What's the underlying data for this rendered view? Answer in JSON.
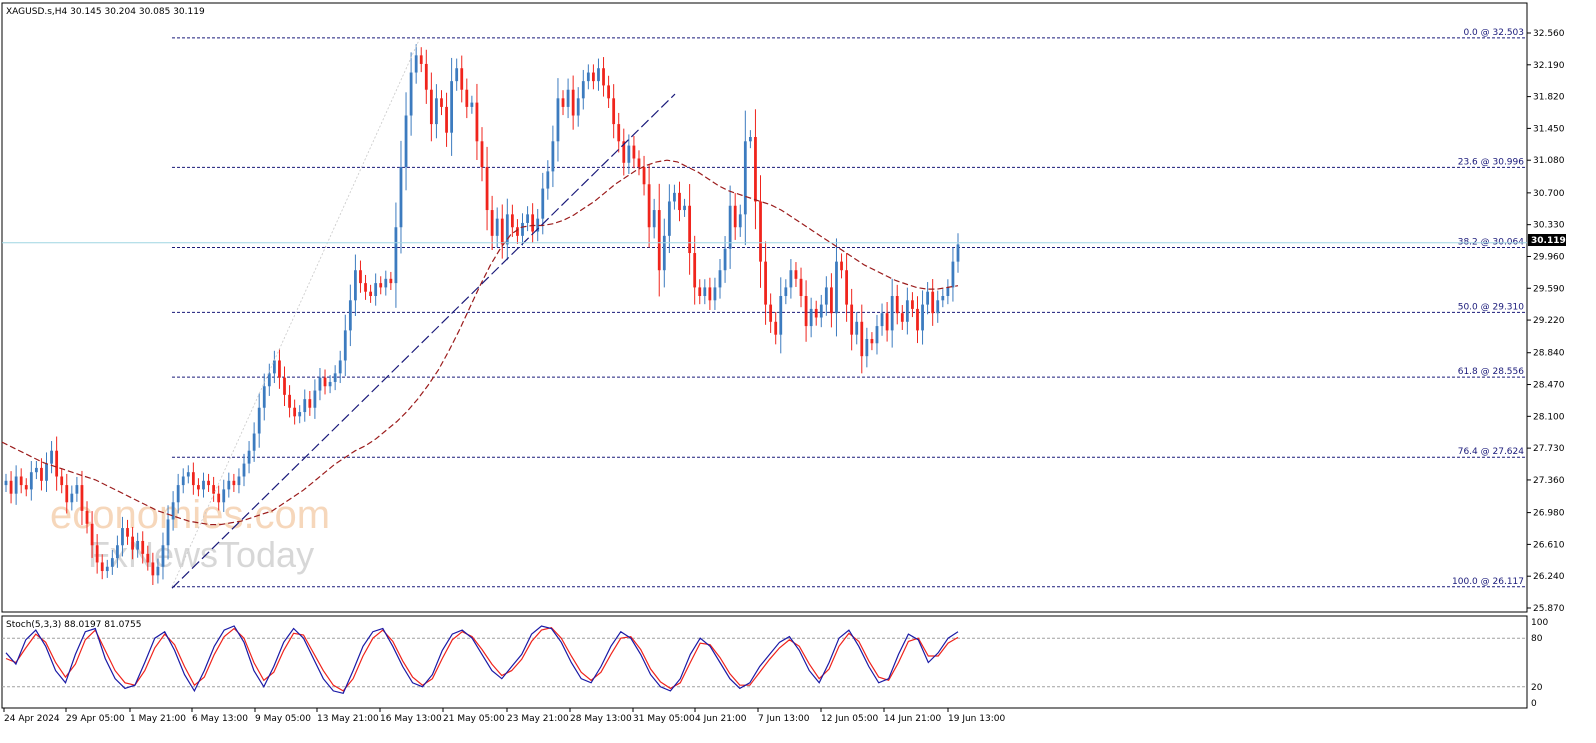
{
  "header": {
    "symbol_info": "XAGUSD.s,H4  30.145 30.204 30.085 30.119",
    "stoch_info": "Stoch(5,3,3) 88.0197 81.0755"
  },
  "watermark": {
    "line1": "economies.com",
    "line2": "FxNewsToday"
  },
  "colors": {
    "bull": "#3c7bbf",
    "bear": "#f0241c",
    "ma": "#9b1c1c",
    "fib": "#1a1a7a",
    "trendline": "#1a1a7a",
    "stoch_main": "#1a1aa6",
    "stoch_signal": "#f0241c",
    "price_line": "#9fd6e2"
  },
  "chart_data": {
    "type": "candlestick",
    "symbol": "XAGUSD.s",
    "timeframe": "H4",
    "ohlc_last": {
      "open": 30.145,
      "high": 30.204,
      "low": 30.085,
      "close": 30.119
    },
    "last_price_label": "30.119",
    "ylim": [
      25.87,
      32.56
    ],
    "y_ticks": [
      "32.560",
      "32.190",
      "31.820",
      "31.450",
      "31.080",
      "30.700",
      "30.330",
      "29.960",
      "29.590",
      "29.220",
      "28.840",
      "28.470",
      "28.100",
      "27.730",
      "27.360",
      "26.980",
      "26.610",
      "26.240",
      "25.870"
    ],
    "x_tick_labels": [
      "24 Apr 2024",
      "29 Apr 05:00",
      "1 May 21:00",
      "6 May 13:00",
      "9 May 05:00",
      "13 May 21:00",
      "16 May 13:00",
      "21 May 05:00",
      "23 May 21:00",
      "28 May 13:00",
      "31 May 05:00",
      "4 Jun 21:00",
      "7 Jun 13:00",
      "12 Jun 05:00",
      "14 Jun 21:00",
      "19 Jun 13:00"
    ],
    "fib_levels": [
      {
        "label": "0.0 @ 32.503",
        "value": 32.503
      },
      {
        "label": "23.6 @ 30.996",
        "value": 30.996
      },
      {
        "label": "38.2 @ 30.064",
        "value": 30.064
      },
      {
        "label": "50.0 @ 29.310",
        "value": 29.31
      },
      {
        "label": "61.8 @ 28.556",
        "value": 28.556
      },
      {
        "label": "76.4 @ 27.624",
        "value": 27.624
      },
      {
        "label": "100.0 @ 26.117",
        "value": 26.117
      }
    ],
    "closes": [
      27.35,
      27.2,
      27.4,
      27.3,
      27.25,
      27.45,
      27.5,
      27.35,
      27.55,
      27.7,
      27.4,
      27.3,
      27.1,
      27.2,
      27.3,
      27.0,
      26.85,
      26.6,
      26.4,
      26.3,
      26.35,
      26.45,
      26.6,
      26.8,
      26.7,
      26.55,
      26.65,
      26.5,
      26.4,
      26.25,
      26.35,
      26.6,
      26.9,
      27.1,
      27.3,
      27.4,
      27.45,
      27.3,
      27.25,
      27.35,
      27.3,
      27.2,
      27.1,
      27.25,
      27.35,
      27.3,
      27.4,
      27.55,
      27.7,
      27.9,
      28.2,
      28.45,
      28.6,
      28.75,
      28.55,
      28.35,
      28.2,
      28.1,
      28.15,
      28.3,
      28.2,
      28.4,
      28.55,
      28.45,
      28.5,
      28.6,
      28.75,
      29.1,
      29.45,
      29.8,
      29.65,
      29.55,
      29.5,
      29.65,
      29.6,
      29.7,
      29.65,
      30.3,
      31.0,
      31.6,
      32.1,
      32.3,
      32.2,
      31.9,
      31.5,
      31.8,
      31.7,
      31.4,
      32.0,
      32.15,
      31.9,
      31.7,
      31.75,
      31.3,
      31.0,
      30.5,
      30.2,
      30.4,
      30.1,
      30.45,
      30.3,
      30.2,
      30.35,
      30.45,
      30.25,
      30.4,
      30.75,
      30.95,
      31.3,
      31.8,
      31.7,
      31.9,
      31.6,
      31.8,
      32.0,
      32.1,
      32.0,
      32.15,
      31.95,
      31.8,
      31.5,
      31.3,
      31.05,
      31.25,
      31.1,
      31.0,
      30.8,
      30.3,
      30.5,
      29.8,
      30.2,
      30.6,
      30.7,
      30.5,
      30.55,
      30.0,
      29.6,
      29.5,
      29.6,
      29.45,
      29.6,
      29.8,
      30.05,
      30.55,
      30.3,
      30.45,
      31.3,
      31.35,
      30.6,
      29.9,
      29.4,
      29.2,
      29.05,
      29.5,
      29.6,
      29.8,
      29.7,
      29.5,
      29.15,
      29.35,
      29.25,
      29.4,
      29.6,
      29.3,
      29.9,
      29.8,
      29.4,
      29.05,
      29.2,
      28.8,
      29.0,
      28.95,
      29.15,
      29.3,
      29.1,
      29.5,
      29.3,
      29.2,
      29.45,
      29.35,
      29.1,
      29.4,
      29.55,
      29.3,
      29.45,
      29.5,
      29.6,
      29.9,
      30.1
    ],
    "ma_values": [
      27.8,
      27.74,
      27.68,
      27.62,
      27.56,
      27.52,
      27.48,
      27.44,
      27.4,
      27.36,
      27.3,
      27.24,
      27.18,
      27.12,
      27.06,
      27.0,
      26.96,
      26.92,
      26.88,
      26.86,
      26.84,
      26.84,
      26.86,
      26.88,
      26.92,
      26.96,
      27.0,
      27.08,
      27.16,
      27.24,
      27.34,
      27.44,
      27.54,
      27.62,
      27.7,
      27.76,
      27.84,
      27.94,
      28.04,
      28.16,
      28.3,
      28.46,
      28.64,
      28.86,
      29.1,
      29.36,
      29.62,
      29.86,
      30.06,
      30.22,
      30.3,
      30.32,
      30.32,
      30.34,
      30.38,
      30.44,
      30.52,
      30.6,
      30.7,
      30.8,
      30.88,
      30.96,
      31.02,
      31.06,
      31.08,
      31.06,
      31.0,
      30.94,
      30.86,
      30.78,
      30.72,
      30.68,
      30.64,
      30.6,
      30.56,
      30.5,
      30.42,
      30.34,
      30.26,
      30.18,
      30.1,
      30.02,
      29.94,
      29.86,
      29.8,
      29.74,
      29.68,
      29.64,
      29.6,
      29.58,
      29.58,
      29.6,
      29.62
    ],
    "trendline": [
      {
        "x": 26.1,
        "t": 0.11
      },
      {
        "x": 31.85,
        "t": 0.43
      }
    ],
    "stochastic": {
      "params": "5,3,3",
      "main_last": 88.0197,
      "signal_last": 81.0755,
      "levels": [
        80,
        20
      ],
      "ylim": [
        0,
        100
      ],
      "y_ticks": [
        "100",
        "80",
        "20",
        "0"
      ],
      "main": [
        62,
        48,
        78,
        90,
        70,
        40,
        25,
        60,
        88,
        92,
        55,
        30,
        18,
        22,
        50,
        80,
        88,
        65,
        35,
        15,
        40,
        70,
        90,
        95,
        75,
        40,
        20,
        45,
        75,
        92,
        80,
        55,
        30,
        15,
        12,
        40,
        70,
        88,
        92,
        70,
        45,
        25,
        20,
        35,
        65,
        85,
        90,
        80,
        60,
        40,
        30,
        45,
        60,
        85,
        95,
        92,
        75,
        50,
        30,
        25,
        45,
        70,
        88,
        80,
        60,
        35,
        20,
        15,
        30,
        60,
        80,
        70,
        50,
        30,
        18,
        25,
        45,
        60,
        75,
        82,
        65,
        40,
        25,
        50,
        80,
        90,
        70,
        45,
        25,
        30,
        60,
        85,
        78,
        50,
        62,
        80,
        88
      ],
      "signal": [
        55,
        50,
        68,
        85,
        75,
        50,
        32,
        48,
        78,
        90,
        65,
        40,
        25,
        22,
        40,
        68,
        85,
        72,
        45,
        22,
        32,
        60,
        82,
        92,
        80,
        50,
        28,
        38,
        65,
        86,
        84,
        62,
        40,
        22,
        15,
        30,
        58,
        80,
        90,
        76,
        52,
        32,
        22,
        30,
        55,
        78,
        88,
        82,
        66,
        48,
        34,
        40,
        54,
        76,
        90,
        93,
        80,
        58,
        38,
        28,
        38,
        60,
        80,
        82,
        66,
        42,
        26,
        18,
        25,
        50,
        74,
        72,
        56,
        36,
        22,
        22,
        38,
        54,
        68,
        78,
        70,
        48,
        30,
        42,
        70,
        86,
        76,
        52,
        32,
        28,
        50,
        76,
        80,
        58,
        58,
        74,
        81
      ]
    }
  }
}
